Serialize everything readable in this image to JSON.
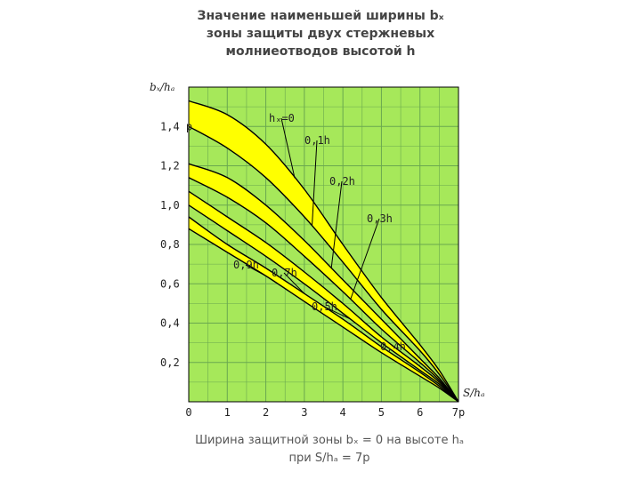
{
  "title": {
    "line1": "Значение наименьшей ширины bₓ",
    "line2": "зоны защиты двух стержневых",
    "line3": "молниеотводов высотой h"
  },
  "footnote": {
    "line1": "Ширина защитной зоны bₓ = 0 на высоте hₐ",
    "line2": "при S/hₐ = 7p"
  },
  "colors": {
    "plot_background": "#a6e85a",
    "grid": "#6aa84f",
    "band_fill": "#ffff00",
    "curve": "#000000"
  },
  "chart_data": {
    "type": "line",
    "title": "Значение наименьшей ширины bₓ зоны защиты двух стержневых молниеотводов высотой h",
    "xlabel": "S/hₐ",
    "ylabel": "bₓ/hₐ",
    "xlim": [
      0,
      7
    ],
    "ylim": [
      0,
      1.6
    ],
    "grid": true,
    "x_ticks": [
      "0",
      "1",
      "2",
      "3",
      "4",
      "5",
      "6",
      "7p"
    ],
    "y_ticks": [
      "0,2",
      "0,4",
      "0,6",
      "0,8",
      "1,0",
      "1,2",
      "1,4 p"
    ],
    "annotation": "Ширина защитной зоны bₓ = 0 на высоте hₐ при S/hₐ = 7p",
    "x": [
      0,
      1,
      2,
      3,
      4,
      5,
      6,
      6.5,
      7
    ],
    "series": [
      {
        "name": "hₓ=0",
        "values": [
          1.53,
          1.46,
          1.31,
          1.08,
          0.8,
          0.53,
          0.29,
          0.16,
          0.0
        ]
      },
      {
        "name": "0,1h",
        "values": [
          1.4,
          1.29,
          1.14,
          0.94,
          0.71,
          0.47,
          0.26,
          0.14,
          0.0
        ]
      },
      {
        "name": "0,2h",
        "values": [
          1.21,
          1.14,
          1.0,
          0.82,
          0.62,
          0.42,
          0.22,
          0.12,
          0.0
        ]
      },
      {
        "name": "0,3h",
        "values": [
          1.14,
          1.04,
          0.91,
          0.74,
          0.56,
          0.37,
          0.2,
          0.11,
          0.0
        ]
      },
      {
        "name": "0,4h",
        "values": [
          1.07,
          0.94,
          0.81,
          0.66,
          0.5,
          0.33,
          0.18,
          0.1,
          0.0
        ]
      },
      {
        "name": "0,5h",
        "values": [
          1.0,
          0.87,
          0.74,
          0.6,
          0.45,
          0.3,
          0.16,
          0.09,
          0.0
        ]
      },
      {
        "name": "0,7h",
        "values": [
          0.94,
          0.8,
          0.68,
          0.55,
          0.42,
          0.28,
          0.15,
          0.08,
          0.0
        ]
      },
      {
        "name": "0,9h",
        "values": [
          0.88,
          0.76,
          0.64,
          0.51,
          0.38,
          0.25,
          0.13,
          0.07,
          0.0
        ]
      }
    ]
  }
}
